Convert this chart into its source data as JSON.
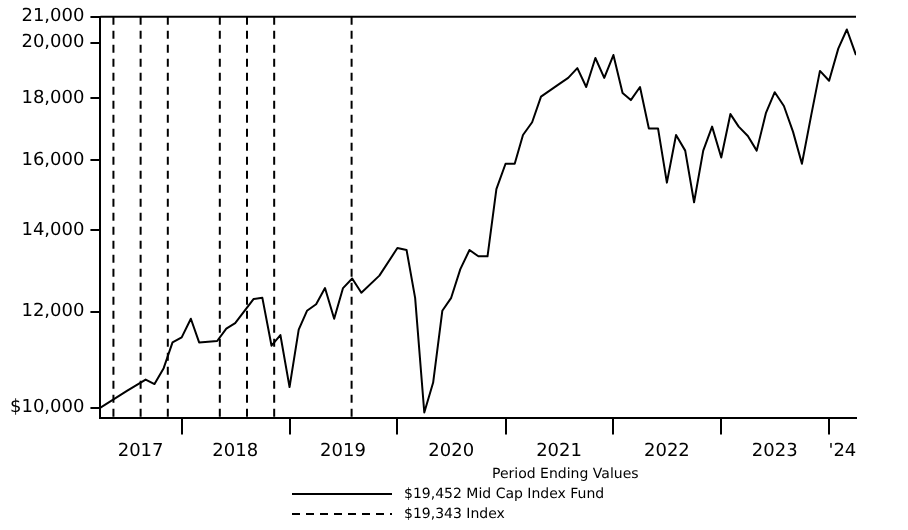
{
  "chart_data": {
    "type": "line",
    "legend_title": "Period Ending Values",
    "legend": "bottom",
    "log": "y",
    "grid": false,
    "x": [
      "2017-04",
      "2017-07",
      "2017-09",
      "2017-10",
      "2017-11",
      "2017-12",
      "2018-01",
      "2018-02",
      "2018-03",
      "2018-05",
      "2018-06",
      "2018-07",
      "2018-09",
      "2018-10",
      "2018-11",
      "2018-12",
      "2019-01",
      "2019-02",
      "2019-03",
      "2019-04",
      "2019-05",
      "2019-06",
      "2019-07",
      "2019-08",
      "2019-09",
      "2019-11",
      "2020-01",
      "2020-02",
      "2020-03",
      "2020-04",
      "2020-05",
      "2020-06",
      "2020-07",
      "2020-08",
      "2020-09",
      "2020-10",
      "2020-11",
      "2020-12",
      "2021-01",
      "2021-02",
      "2021-03",
      "2021-04",
      "2021-05",
      "2021-07",
      "2021-08",
      "2021-09",
      "2021-10",
      "2021-11",
      "2021-12",
      "2022-01",
      "2022-02",
      "2022-03",
      "2022-04",
      "2022-05",
      "2022-06",
      "2022-07",
      "2022-08",
      "2022-09",
      "2022-10",
      "2022-11",
      "2022-12",
      "2023-01",
      "2023-02",
      "2023-03",
      "2023-04",
      "2023-05",
      "2023-06",
      "2023-07",
      "2023-08",
      "2023-09",
      "2023-10",
      "2023-11",
      "2023-12",
      "2024-01",
      "2024-02",
      "2024-03",
      "2024-04"
    ],
    "series": [
      {
        "name": "$19,452 Mid Cap Index Fund",
        "color": "#000000",
        "line_style": "solid",
        "values": [
          10000,
          10330,
          10550,
          10460,
          10780,
          11320,
          11430,
          11840,
          11320,
          11350,
          11620,
          11740,
          12290,
          12320,
          11250,
          11480,
          10400,
          11600,
          12020,
          12170,
          12550,
          11840,
          12550,
          12780,
          12440,
          12850,
          13540,
          13490,
          12320,
          9910,
          10490,
          12020,
          12320,
          13010,
          13490,
          13330,
          13330,
          15140,
          15890,
          15890,
          16780,
          17190,
          18050,
          18480,
          18700,
          19050,
          18380,
          19420,
          18700,
          19530,
          18170,
          17930,
          18380,
          16990,
          16990,
          15330,
          16780,
          16290,
          14770,
          16290,
          17050,
          16080,
          17460,
          17050,
          16750,
          16290,
          17490,
          18200,
          17730,
          16880,
          15890,
          17400,
          18950,
          18600,
          19770,
          20500,
          19530
        ]
      },
      {
        "name": "$19,343 Index",
        "color": "#000000",
        "line_style": "dashed",
        "values": [
          null,
          null,
          null,
          null,
          null,
          null,
          null,
          null,
          null,
          null,
          null,
          null,
          null,
          null,
          null,
          null,
          null,
          null,
          null,
          null,
          null,
          null,
          null,
          null,
          null,
          null,
          null,
          null,
          null,
          null,
          null,
          null,
          null,
          null,
          null,
          null,
          null,
          null,
          null,
          null,
          null,
          null,
          null,
          null,
          null,
          null,
          null,
          null,
          null,
          null,
          null,
          null,
          null,
          null,
          null,
          null,
          null,
          null,
          null,
          null,
          null,
          null,
          null,
          null,
          null,
          null,
          null,
          null,
          null,
          null,
          null,
          null,
          null,
          null,
          null,
          null,
          null
        ]
      }
    ],
    "xlim": [
      "2017-04",
      "2024-04"
    ],
    "xticks": [
      {
        "value": "2017-08-15",
        "label": "2017"
      },
      {
        "value": "2018-01",
        "label": null
      },
      {
        "value": "2018-07",
        "label": "2018"
      },
      {
        "value": "2019-01",
        "label": null
      },
      {
        "value": "2019-07",
        "label": "2019"
      },
      {
        "value": "2020-01",
        "label": null
      },
      {
        "value": "2020-07",
        "label": "2020"
      },
      {
        "value": "2021-01",
        "label": null
      },
      {
        "value": "2021-07",
        "label": "2021"
      },
      {
        "value": "2022-01",
        "label": null
      },
      {
        "value": "2022-07",
        "label": "2022"
      },
      {
        "value": "2023-01",
        "label": null
      },
      {
        "value": "2023-07",
        "label": "2023"
      },
      {
        "value": "2024-01",
        "label": null
      },
      {
        "value": "2024-02-15",
        "label": "'24"
      }
    ],
    "ylim": [
      9800,
      21000
    ],
    "yticks": [
      {
        "value": 10000,
        "label": "$10,000"
      },
      {
        "value": 12000,
        "label": "12,000"
      },
      {
        "value": 14000,
        "label": "14,000"
      },
      {
        "value": 16000,
        "label": "16,000"
      },
      {
        "value": 18000,
        "label": "18,000"
      },
      {
        "value": 20000,
        "label": "20,000"
      },
      {
        "value": 21000,
        "label": "21,000"
      }
    ],
    "ref_lines": [
      {
        "axis": "x",
        "value": "2017-05-15",
        "line_style": "dashed"
      },
      {
        "axis": "x",
        "value": "2017-08-15",
        "line_style": "dashed"
      },
      {
        "axis": "x",
        "value": "2017-11-15",
        "line_style": "dashed"
      },
      {
        "axis": "x",
        "value": "2018-05-10",
        "line_style": "dashed"
      },
      {
        "axis": "x",
        "value": "2018-08-10",
        "line_style": "dashed"
      },
      {
        "axis": "x",
        "value": "2018-11-10",
        "line_style": "dashed"
      },
      {
        "axis": "x",
        "value": "2019-07-30",
        "line_style": "dashed"
      }
    ]
  }
}
